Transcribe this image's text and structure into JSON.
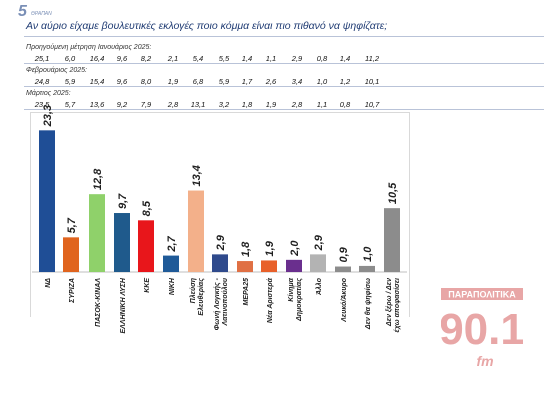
{
  "header": {
    "logo_number": "5",
    "logo_text": "ΘΡΑΠΑΝ",
    "question": "Αν αύριο είχαμε βουλευτικές εκλογές ποιο κόμμα είναι πιο πιθανό να ψηφίζατε;"
  },
  "previous_waves": [
    {
      "label": "Προηγούμενη μέτρηση Ιανουάριος 2025:",
      "values": [
        "25,1",
        "6,0",
        "16,4",
        "9,6",
        "8,2",
        "2,1",
        "5,4",
        "5,5",
        "1,4",
        "1,1",
        "2,9",
        "0,8",
        "1,4",
        "11,2"
      ]
    },
    {
      "label": "Φεβρουάριος 2025:",
      "values": [
        "24,8",
        "5,9",
        "15,4",
        "9,6",
        "8,0",
        "1,9",
        "6,8",
        "5,9",
        "1,7",
        "2,6",
        "3,4",
        "1,0",
        "1,2",
        "10,1"
      ]
    },
    {
      "label": "Μάρτιος 2025:",
      "values": [
        "23,5",
        "5,7",
        "13,6",
        "9,2",
        "7,9",
        "2,8",
        "13,1",
        "3,2",
        "1,8",
        "1,9",
        "2,8",
        "1,1",
        "0,8",
        "10,7"
      ]
    }
  ],
  "chart_data": {
    "type": "bar",
    "categories": [
      "ΝΔ",
      "ΣΥΡΙΖΑ",
      "ΠΑΣΟΚ-ΚΙΝΑΛ",
      "ΕΛΛΗΝΙΚΗ ΛΥΣΗ",
      "ΚΚΕ",
      "ΝΙΚΗ",
      "Πλεύση Ελευθερίας",
      "Φωνή Λογικής - Λατινοπούλου",
      "ΜΕΡΑ25",
      "Νέα Αριστερά",
      "Κίνημα Δημοκρατίας",
      "Άλλο",
      "Λευκό/Άκυρο",
      "Δεν θα ψηφίσω",
      "Δεν ξέρω / Δεν έχω αποφασίσει"
    ],
    "category_lines": [
      [
        "ΝΔ"
      ],
      [
        "ΣΥΡΙΖΑ"
      ],
      [
        "ΠΑΣΟΚ-ΚΙΝΑΛ"
      ],
      [
        "ΕΛΛΗΝΙΚΗ ΛΥΣΗ"
      ],
      [
        "ΚΚΕ"
      ],
      [
        "ΝΙΚΗ"
      ],
      [
        "Πλεύση",
        "Ελευθερίας"
      ],
      [
        "Φωνή Λογικής -",
        "Λατινοπούλου"
      ],
      [
        "ΜΕΡΑ25"
      ],
      [
        "Νέα Αριστερά"
      ],
      [
        "Κίνημα",
        "Δημοκρατίας"
      ],
      [
        "Άλλο"
      ],
      [
        "Λευκό/Άκυρο"
      ],
      [
        "Δεν θα ψηφίσω"
      ],
      [
        "Δεν ξέρω / Δεν",
        "έχω αποφασίσει"
      ]
    ],
    "values": [
      23.3,
      5.7,
      12.8,
      9.7,
      8.5,
      2.7,
      13.4,
      2.9,
      1.8,
      1.9,
      2.0,
      2.9,
      0.9,
      1.0,
      10.5
    ],
    "value_labels": [
      "23,3",
      "5,7",
      "12,8",
      "9,7",
      "8,5",
      "2,7",
      "13,4",
      "2,9",
      "1,8",
      "1,9",
      "2,0",
      "2,9",
      "0,9",
      "1,0",
      "10,5"
    ],
    "colors": [
      "#1f4e96",
      "#e0641e",
      "#8fd16a",
      "#1f5a8c",
      "#e8161b",
      "#1f5a98",
      "#f3b08a",
      "#2f4a8c",
      "#e07044",
      "#e8602a",
      "#6a2f8e",
      "#b3b3b3",
      "#8c8c8c",
      "#8c8c8c",
      "#8c8c8c"
    ],
    "ylim": [
      0,
      25
    ]
  },
  "brand": {
    "top_text": "ΠΑΡΑΠΟΛΙΤΙΚΑ",
    "number": "90.1",
    "fm": "fm",
    "color": "#e8a6a6"
  }
}
